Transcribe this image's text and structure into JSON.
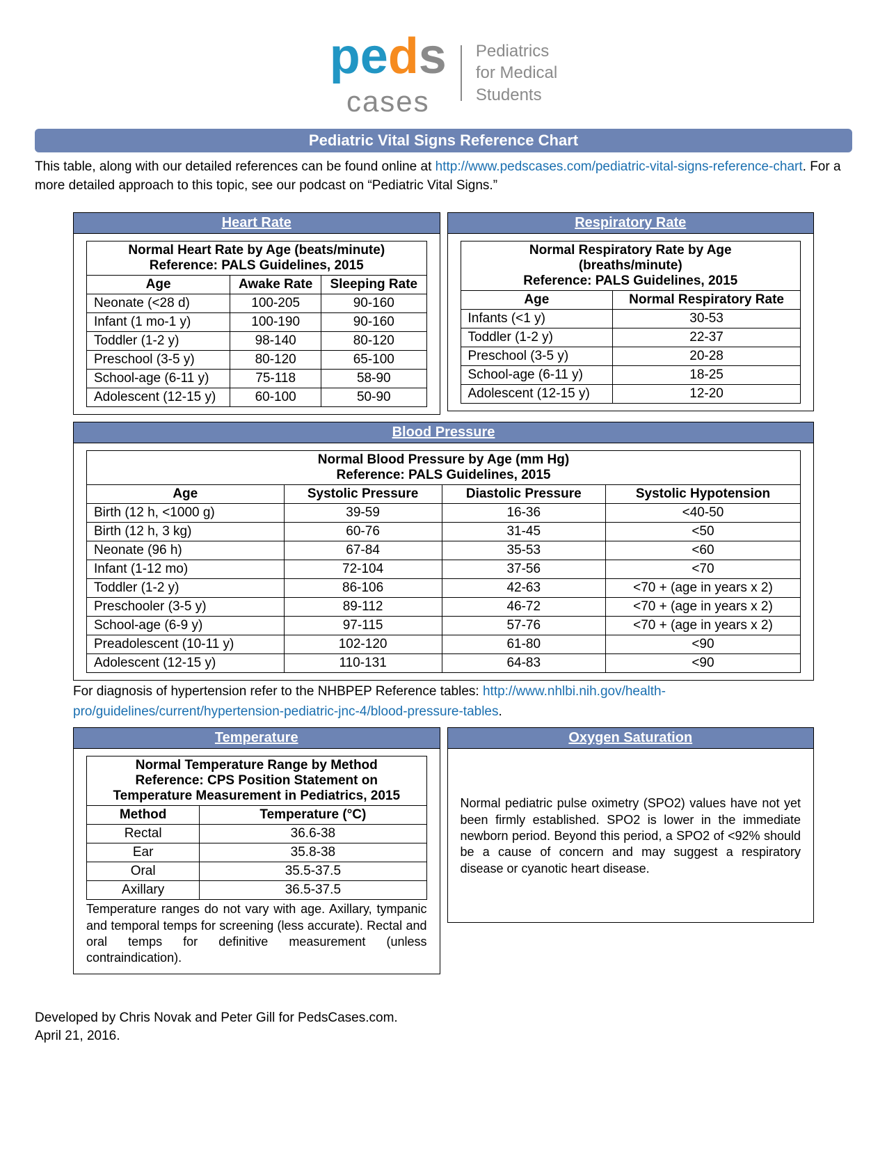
{
  "logo": {
    "tagline_l1": "Pediatrics",
    "tagline_l2": "for Medical",
    "tagline_l3": "Students"
  },
  "title": "Pediatric Vital Signs Reference Chart",
  "intro": {
    "pre": "This table, along with our detailed references can be found online at ",
    "link": "http://www.pedscases.com/pediatric-vital-signs-reference-chart",
    "post": ". For a more detailed approach to this topic, see our podcast on “Pediatric Vital Signs.”"
  },
  "heart_rate": {
    "header": "Heart Rate",
    "caption_l1": "Normal Heart Rate by Age (beats/minute)",
    "caption_l2": "Reference: PALS Guidelines, 2015",
    "columns": [
      "Age",
      "Awake Rate",
      "Sleeping Rate"
    ],
    "rows": [
      [
        "Neonate (<28 d)",
        "100-205",
        "90-160"
      ],
      [
        "Infant (1 mo-1 y)",
        "100-190",
        "90-160"
      ],
      [
        "Toddler (1-2 y)",
        "98-140",
        "80-120"
      ],
      [
        "Preschool (3-5 y)",
        "80-120",
        "65-100"
      ],
      [
        "School-age (6-11 y)",
        "75-118",
        "58-90"
      ],
      [
        "Adolescent (12-15 y)",
        "60-100",
        "50-90"
      ]
    ]
  },
  "respiratory_rate": {
    "header": "Respiratory Rate",
    "caption_l1": "Normal Respiratory Rate by Age",
    "caption_l2": "(breaths/minute)",
    "caption_l3": "Reference: PALS Guidelines, 2015",
    "columns": [
      "Age",
      "Normal Respiratory Rate"
    ],
    "rows": [
      [
        "Infants (<1 y)",
        "30-53"
      ],
      [
        "Toddler (1-2 y)",
        "22-37"
      ],
      [
        "Preschool (3-5 y)",
        "20-28"
      ],
      [
        "School-age (6-11 y)",
        "18-25"
      ],
      [
        "Adolescent (12-15 y)",
        "12-20"
      ]
    ]
  },
  "blood_pressure": {
    "header": "Blood Pressure",
    "caption_l1": "Normal Blood Pressure by Age (mm Hg)",
    "caption_l2": "Reference: PALS Guidelines, 2015",
    "columns": [
      "Age",
      "Systolic Pressure",
      "Diastolic Pressure",
      "Systolic Hypotension"
    ],
    "rows": [
      [
        "Birth (12 h, <1000 g)",
        "39-59",
        "16-36",
        "<40-50"
      ],
      [
        "Birth (12 h, 3 kg)",
        "60-76",
        "31-45",
        "<50"
      ],
      [
        "Neonate (96 h)",
        "67-84",
        "35-53",
        "<60"
      ],
      [
        "Infant (1-12 mo)",
        "72-104",
        "37-56",
        "<70"
      ],
      [
        "Toddler (1-2 y)",
        "86-106",
        "42-63",
        "<70 + (age in years x 2)"
      ],
      [
        "Preschooler (3-5 y)",
        "89-112",
        "46-72",
        "<70 + (age in years x 2)"
      ],
      [
        "School-age (6-9 y)",
        "97-115",
        "57-76",
        "<70 + (age in years x 2)"
      ],
      [
        "Preadolescent (10-11 y)",
        "102-120",
        "61-80",
        "<90"
      ],
      [
        "Adolescent (12-15 y)",
        "110-131",
        "64-83",
        "<90"
      ]
    ],
    "note_pre": "For diagnosis of hypertension refer to the NHBPEP Reference tables: ",
    "note_link": "http://www.nhlbi.nih.gov/health-pro/guidelines/current/hypertension-pediatric-jnc-4/blood-pressure-tables",
    "note_post": "."
  },
  "temperature": {
    "header": "Temperature",
    "caption_l1": "Normal Temperature Range by Method",
    "caption_l2": "Reference: CPS Position Statement on",
    "caption_l3": "Temperature Measurement in Pediatrics, 2015",
    "columns": [
      "Method",
      "Temperature (°C)"
    ],
    "rows": [
      [
        "Rectal",
        "36.6-38"
      ],
      [
        "Ear",
        "35.8-38"
      ],
      [
        "Oral",
        "35.5-37.5"
      ],
      [
        "Axillary",
        "36.5-37.5"
      ]
    ],
    "note": "Temperature ranges do not vary with age. Axillary, tympanic and temporal temps for screening (less accurate). Rectal and oral temps for definitive measurement (unless contraindication)."
  },
  "oxygen": {
    "header": "Oxygen Saturation",
    "note": "Normal pediatric pulse oximetry (SPO2) values have not yet been firmly established. SPO2 is lower in the immediate newborn period. Beyond this period, a SPO2 of <92% should be a cause of concern and may suggest a respiratory disease or cyanotic heart disease."
  },
  "footer": {
    "l1": "Developed by Chris Novak and Peter Gill for PedsCases.com.",
    "l2": "April 21, 2016."
  },
  "colors": {
    "header_bg": "#6d84b4",
    "link": "#1a6fb0",
    "logo_blue": "#2196c4",
    "logo_orange": "#f68b1f",
    "logo_gray": "#8a8a8a"
  }
}
